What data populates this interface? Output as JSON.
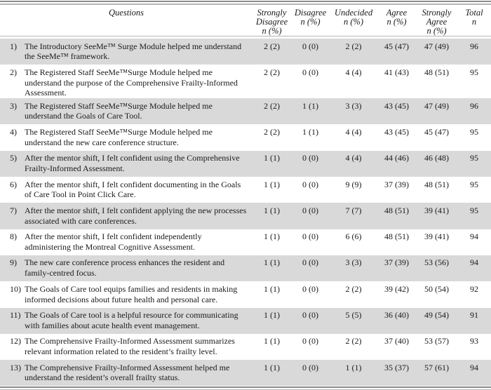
{
  "colors": {
    "row_shade": "#d9d9d9",
    "rule_dark": "#8c8c8c",
    "rule_light": "#b5b5b5",
    "text": "#1a1a1a"
  },
  "table": {
    "columns": [
      {
        "label": "Questions",
        "sub": ""
      },
      {
        "label": "Strongly Disagree",
        "sub": "n (%)"
      },
      {
        "label": "Disagree",
        "sub": "n (%)"
      },
      {
        "label": "Undecided",
        "sub": "n (%)"
      },
      {
        "label": "Agree",
        "sub": "n (%)"
      },
      {
        "label": "Strongly Agree",
        "sub": "n (%)"
      },
      {
        "label": "Total",
        "sub": "n"
      }
    ],
    "rows": [
      {
        "num": "1)",
        "question": "The Introductory SeeMe™ Surge Module helped me understand the SeeMe™ framework.",
        "strongly_disagree": "2 (2)",
        "disagree": "0 (0)",
        "undecided": "2 (2)",
        "agree": "45 (47)",
        "strongly_agree": "47 (49)",
        "total": "96"
      },
      {
        "num": "2)",
        "question": "The Registered Staff SeeMe™Surge Module helped me understand the purpose of the Comprehensive Frailty-Informed Assessment.",
        "strongly_disagree": "2 (2)",
        "disagree": "0 (0)",
        "undecided": "4 (4)",
        "agree": "41 (43)",
        "strongly_agree": "48 (51)",
        "total": "95"
      },
      {
        "num": "3)",
        "question": "The Registered Staff SeeMe™Surge Module helped me understand the Goals of Care Tool.",
        "strongly_disagree": "2 (2)",
        "disagree": "1 (1)",
        "undecided": "3 (3)",
        "agree": "43 (45)",
        "strongly_agree": "47 (49)",
        "total": "96"
      },
      {
        "num": "4)",
        "question": "The Registered Staff SeeMe™Surge Module helped me understand the new care conference structure.",
        "strongly_disagree": "2 (2)",
        "disagree": "1 (1)",
        "undecided": "4 (4)",
        "agree": "43 (45)",
        "strongly_agree": "45 (47)",
        "total": "95"
      },
      {
        "num": "5)",
        "question": "After the mentor shift, I felt confident using the Comprehensive Frailty-Informed Assessment.",
        "strongly_disagree": "1 (1)",
        "disagree": "0 (0)",
        "undecided": "4 (4)",
        "agree": "44 (46)",
        "strongly_agree": "46 (48)",
        "total": "95"
      },
      {
        "num": "6)",
        "question": "After the mentor shift, I felt confident documenting in the Goals of Care Tool in Point Click Care.",
        "strongly_disagree": "1 (1)",
        "disagree": "0 (0)",
        "undecided": "9 (9)",
        "agree": "37 (39)",
        "strongly_agree": "48 (51)",
        "total": "95"
      },
      {
        "num": "7)",
        "question": "After the mentor shift, I felt confident applying the new processes associated with care conferences.",
        "strongly_disagree": "1 (1)",
        "disagree": "0 (0)",
        "undecided": "7 (7)",
        "agree": "48 (51)",
        "strongly_agree": "39 (41)",
        "total": "95"
      },
      {
        "num": "8)",
        "question": "After the mentor shift, I felt confident independently administering the Montreal Cognitive Assessment.",
        "strongly_disagree": "1 (1)",
        "disagree": "0 (0)",
        "undecided": "6 (6)",
        "agree": "48 (51)",
        "strongly_agree": "39 (41)",
        "total": "94"
      },
      {
        "num": "9)",
        "question": "The new care conference process enhances the resident and family-centred focus.",
        "strongly_disagree": "1 (1)",
        "disagree": "0 (0)",
        "undecided": "3 (3)",
        "agree": "37 (39)",
        "strongly_agree": "53 (56)",
        "total": "94"
      },
      {
        "num": "10)",
        "question": "The Goals of Care tool equips families and residents in making informed decisions about future health and personal care.",
        "strongly_disagree": "1 (1)",
        "disagree": "0 (0)",
        "undecided": "2 (2)",
        "agree": "39 (42)",
        "strongly_agree": "50 (54)",
        "total": "92"
      },
      {
        "num": "11)",
        "question": "The Goals of Care tool is a helpful resource for communicating with families about acute health event management.",
        "strongly_disagree": "1 (1)",
        "disagree": "0 (0)",
        "undecided": "5 (5)",
        "agree": "36 (40)",
        "strongly_agree": "49 (54)",
        "total": "91"
      },
      {
        "num": "12)",
        "question": "The Comprehensive Frailty-Informed Assessment summarizes relevant information related to the resident’s frailty level.",
        "strongly_disagree": "1 (1)",
        "disagree": "0 (0)",
        "undecided": "2 (2)",
        "agree": "37 (40)",
        "strongly_agree": "53 (57)",
        "total": "93"
      },
      {
        "num": "13)",
        "question": "The Comprehensive Frailty-Informed Assessment helped me understand the resident’s overall frailty status.",
        "strongly_disagree": "1 (1)",
        "disagree": "0 (0)",
        "undecided": "1 (1)",
        "agree": "35 (37)",
        "strongly_agree": "57 (61)",
        "total": "94"
      }
    ]
  }
}
